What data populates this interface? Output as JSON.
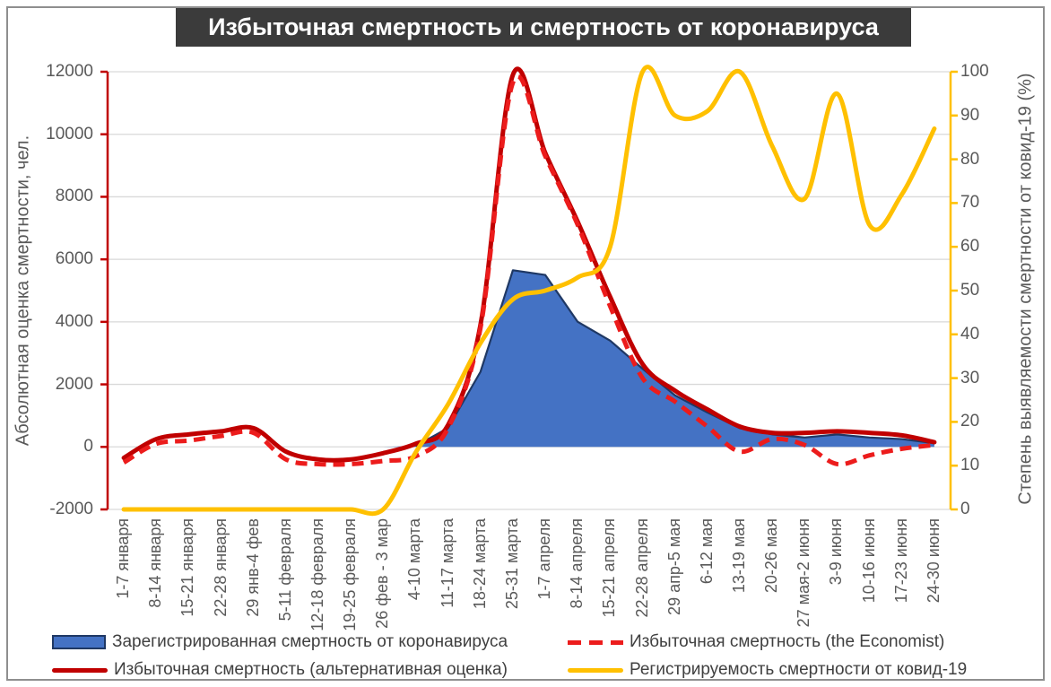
{
  "title": "Избыточная смертность и смертность от коронавируса",
  "colors": {
    "title_bg": "#3B3B3B",
    "title_text": "#FFFFFF",
    "grid": "#D9D9D9",
    "axis_text": "#595959",
    "legend_text": "#404040",
    "frame": "#8F8F8F"
  },
  "chart_data": {
    "type": "combo-area-line",
    "title": "Избыточная смертность и смертность от коронавируса",
    "grid": true,
    "legend_position": "bottom",
    "categories": [
      "1-7 января",
      "8-14 января",
      "15-21 января",
      "22-28 января",
      "29 янв-4 фев",
      "5-11 февраля",
      "12-18 февраля",
      "19-25 февраля",
      "26 фев - 3 мар",
      "4-10 марта",
      "11-17 марта",
      "18-24 марта",
      "25-31 марта",
      "1-7 апреля",
      "8-14 апреля",
      "15-21 апреля",
      "22-28 апреля",
      "29 апр-5 мая",
      "6-12 мая",
      "13-19 мая",
      "20-26 мая",
      "27 мая-2 июня",
      "3-9 июня",
      "10-16 июня",
      "17-23 июня",
      "24-30 июня"
    ],
    "left_axis": {
      "title": "Абсолютная оценка смертности, чел.",
      "min": -2000,
      "max": 12000,
      "step": 2000,
      "color": "#C00000"
    },
    "right_axis": {
      "title": "Степень выявляемости смертности от ковид-19 (%)",
      "min": 0,
      "max": 100,
      "step": 10,
      "color": "#FFC000"
    },
    "series": [
      {
        "name": "Зарегистрированная смертность от коронавируса",
        "type": "area",
        "axis": "left",
        "smooth": false,
        "fill": "#4472C4",
        "stroke": "#1F3864",
        "values": [
          0,
          0,
          0,
          0,
          0,
          0,
          0,
          0,
          0,
          30,
          600,
          2400,
          5650,
          5500,
          4000,
          3400,
          2500,
          1650,
          1100,
          600,
          400,
          300,
          400,
          300,
          250,
          120
        ]
      },
      {
        "name": "Избыточная смертность (альтернативная оценка)",
        "type": "line",
        "axis": "left",
        "smooth": true,
        "stroke": "#C00000",
        "dashed": false,
        "values": [
          -350,
          250,
          400,
          500,
          600,
          -150,
          -400,
          -400,
          -200,
          100,
          700,
          3900,
          11900,
          9400,
          7200,
          4800,
          2650,
          1800,
          1200,
          650,
          450,
          450,
          500,
          450,
          370,
          150
        ]
      },
      {
        "name": "Избыточная смертность (the Economist)",
        "type": "line",
        "axis": "left",
        "smooth": true,
        "stroke": "#EC1C1C",
        "dashed": true,
        "values": [
          -500,
          100,
          200,
          350,
          450,
          -400,
          -550,
          -550,
          -450,
          -300,
          600,
          3800,
          11650,
          9300,
          7100,
          4500,
          2200,
          1450,
          650,
          -150,
          250,
          60,
          -550,
          -270,
          -60,
          60
        ]
      },
      {
        "name": "Регистрируемость смертности от ковид-19",
        "type": "line",
        "axis": "right",
        "smooth": true,
        "stroke": "#FFC000",
        "dashed": false,
        "values": [
          0,
          0,
          0,
          0,
          0,
          0,
          0,
          0,
          0,
          13,
          24,
          38,
          48,
          50,
          53,
          60,
          100,
          90,
          91,
          100,
          83,
          71,
          95,
          65,
          72,
          87
        ]
      }
    ]
  },
  "legend": {
    "items": [
      {
        "label": "Зарегистрированная смертность от коронавируса",
        "marker": "box",
        "color": "#4472C4",
        "border": "#1F3864"
      },
      {
        "label": "Избыточная смертность (the Economist)",
        "marker": "dash",
        "color": "#EC1C1C"
      },
      {
        "label": "Избыточная смертность (альтернативная оценка)",
        "marker": "line",
        "color": "#C00000"
      },
      {
        "label": "Регистрируемость смертности от ковид-19",
        "marker": "line",
        "color": "#FFC000"
      }
    ]
  }
}
